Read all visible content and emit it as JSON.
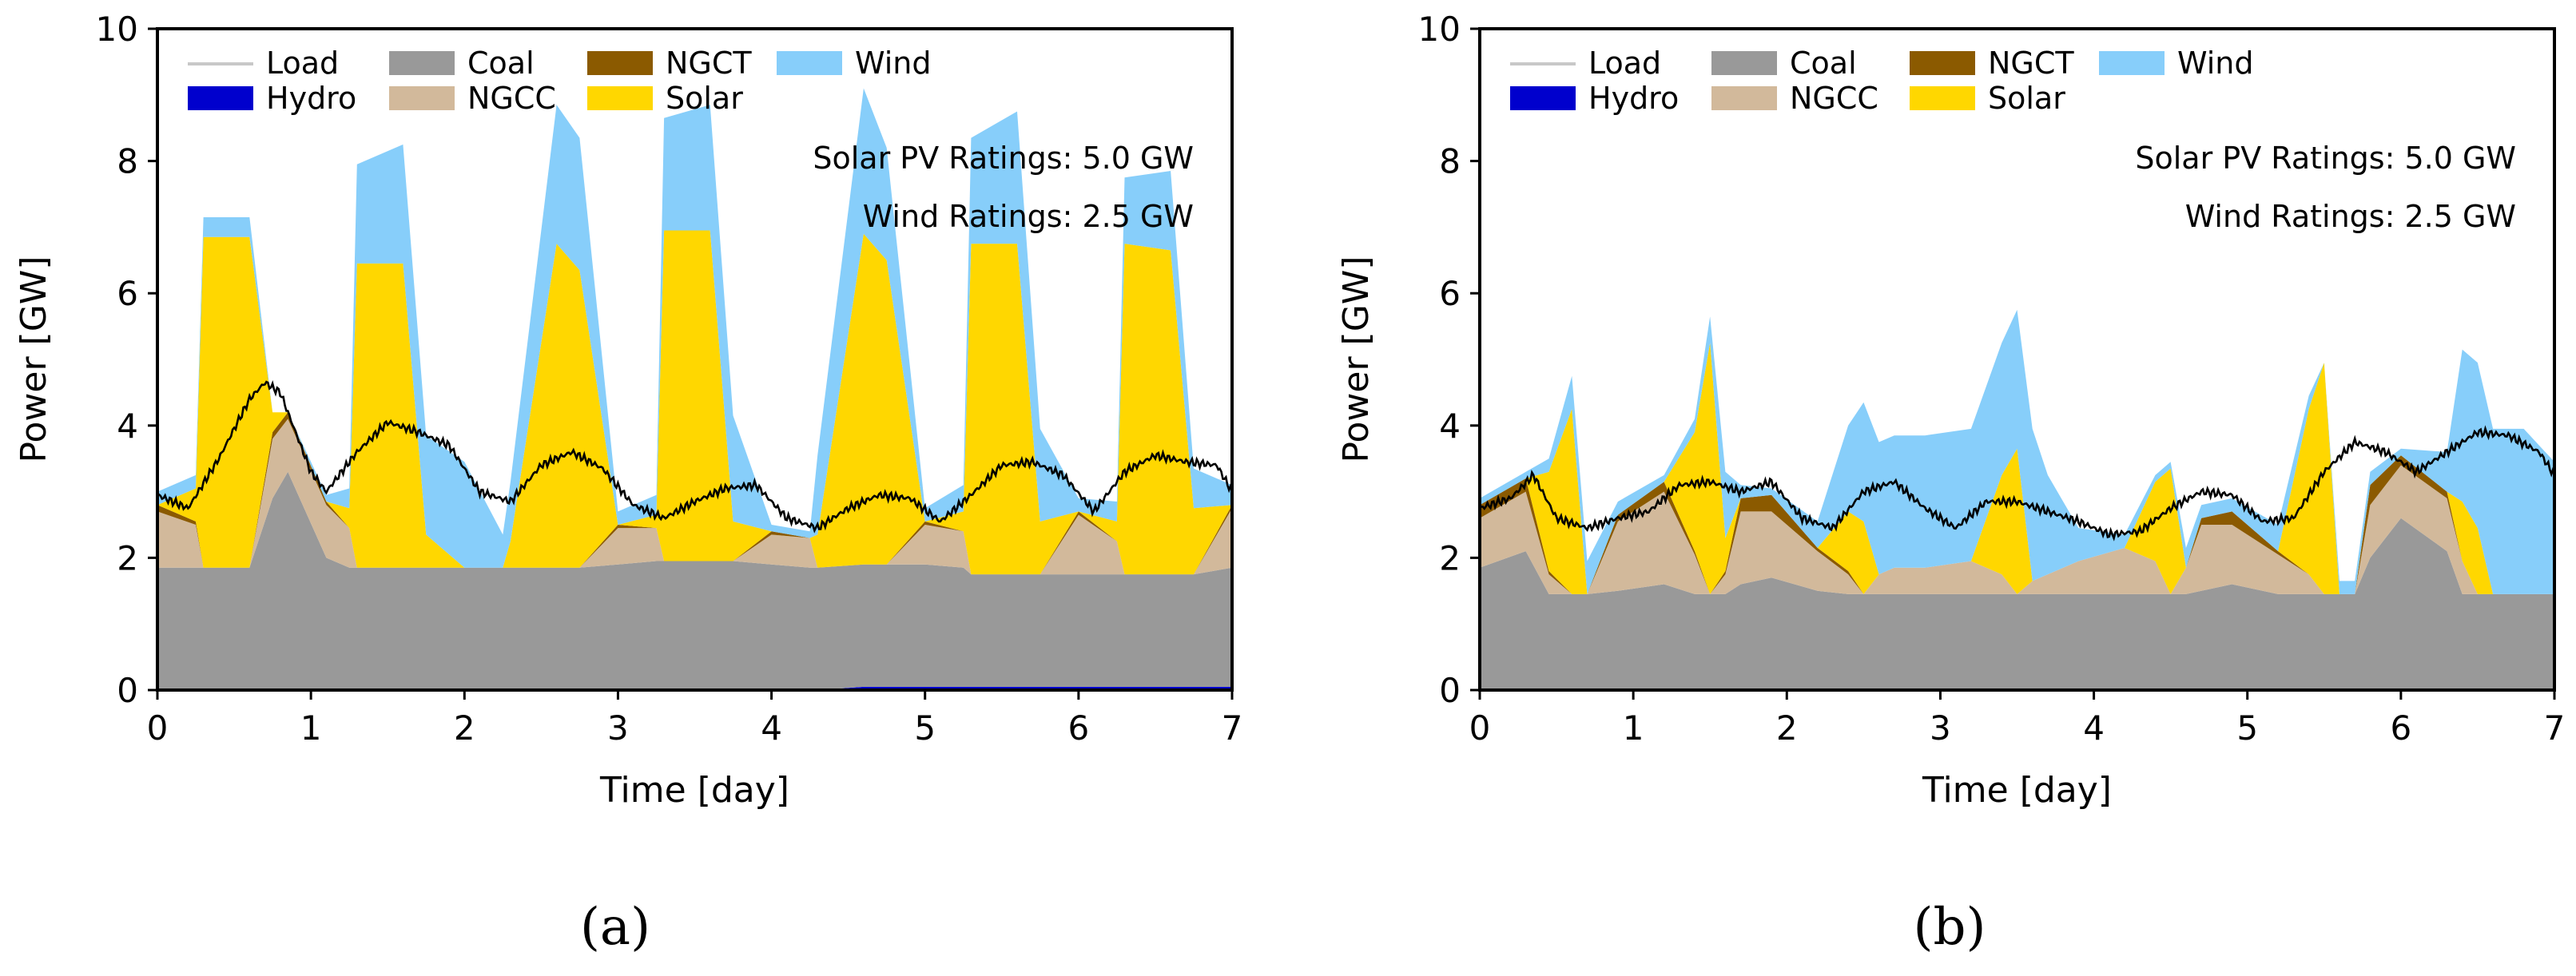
{
  "figure": {
    "captions": [
      "(a)",
      "(b)"
    ]
  },
  "colors": {
    "Load": "#c8c8c8",
    "Coal": "#999999",
    "NGCC": "#d2b99b",
    "NGCT": "#8b5a00",
    "Solar": "#ffd700",
    "Wind": "#87cefa",
    "Hydro": "#0000cd",
    "LoadLine": "#000000"
  },
  "chart_data": [
    {
      "type": "area",
      "stacked": true,
      "caption": "(a)",
      "xlabel": "Time [day]",
      "ylabel": "Power [GW]",
      "xlim": [
        0,
        7
      ],
      "ylim": [
        0,
        10
      ],
      "xticks": [
        0,
        1,
        2,
        3,
        4,
        5,
        6,
        7
      ],
      "yticks": [
        0,
        2,
        4,
        6,
        8,
        10
      ],
      "legend": {
        "placement": "top-left",
        "entries": [
          "Load",
          "Coal",
          "NGCT",
          "Wind",
          "Hydro",
          "NGCC",
          "Solar"
        ]
      },
      "annotations": [
        "Solar PV Ratings: 5.0 GW",
        "Wind Ratings: 2.5 GW"
      ],
      "x": [
        0,
        0.25,
        0.3,
        0.6,
        0.75,
        0.85,
        1.1,
        1.25,
        1.3,
        1.6,
        1.75,
        2.0,
        2.25,
        2.3,
        2.6,
        2.75,
        3.0,
        3.25,
        3.3,
        3.6,
        3.75,
        4.0,
        4.25,
        4.3,
        4.6,
        4.75,
        5.0,
        5.25,
        5.3,
        5.6,
        5.75,
        6.0,
        6.25,
        6.3,
        6.6,
        6.75,
        7.0
      ],
      "series": [
        {
          "name": "Hydro",
          "values": [
            0,
            0,
            0,
            0,
            0,
            0,
            0,
            0,
            0,
            0,
            0,
            0,
            0,
            0,
            0,
            0,
            0,
            0,
            0,
            0,
            0,
            0,
            0,
            0,
            0.05,
            0.05,
            0.05,
            0.05,
            0.05,
            0.05,
            0.05,
            0.05,
            0.05,
            0.05,
            0.05,
            0.05,
            0.05
          ]
        },
        {
          "name": "Coal",
          "values": [
            1.85,
            1.85,
            1.85,
            1.85,
            2.9,
            3.3,
            2.0,
            1.85,
            1.85,
            1.85,
            1.85,
            1.85,
            1.85,
            1.85,
            1.85,
            1.85,
            1.9,
            1.95,
            1.95,
            1.95,
            1.95,
            1.9,
            1.85,
            1.85,
            1.85,
            1.85,
            1.85,
            1.8,
            1.7,
            1.7,
            1.7,
            1.7,
            1.7,
            1.7,
            1.7,
            1.7,
            1.8
          ]
        },
        {
          "name": "NGCC",
          "values": [
            0.85,
            0.65,
            0,
            0,
            0.9,
            0.8,
            0.8,
            0.6,
            0,
            0,
            0,
            0,
            0,
            0,
            0,
            0,
            0.55,
            0.5,
            0,
            0,
            0,
            0.45,
            0.45,
            0,
            0,
            0,
            0.6,
            0.55,
            0,
            0,
            0,
            0.9,
            0.5,
            0,
            0,
            0,
            0.9
          ]
        },
        {
          "name": "NGCT",
          "values": [
            0.1,
            0.05,
            0,
            0,
            0.1,
            0.1,
            0.05,
            0,
            0,
            0,
            0,
            0,
            0,
            0,
            0,
            0,
            0.05,
            0,
            0,
            0,
            0,
            0.05,
            0,
            0,
            0,
            0,
            0.05,
            0,
            0,
            0,
            0,
            0.05,
            0,
            0,
            0,
            0,
            0.05
          ]
        },
        {
          "name": "Solar",
          "values": [
            0,
            0.5,
            5.0,
            5.0,
            0.3,
            0,
            0,
            0.3,
            4.6,
            4.6,
            0.5,
            0,
            0,
            0.4,
            4.9,
            4.5,
            0,
            0.2,
            5.0,
            5.0,
            0.6,
            0,
            0,
            0.5,
            5.0,
            4.6,
            0,
            0.3,
            5.0,
            5.0,
            0.8,
            0,
            0.3,
            5.0,
            4.9,
            1.0,
            0
          ]
        },
        {
          "name": "Wind",
          "values": [
            0.2,
            0.2,
            0.3,
            0.3,
            0,
            0,
            0.1,
            0.3,
            1.5,
            1.8,
            1.5,
            1.6,
            0.5,
            0.9,
            2.1,
            2.0,
            0.2,
            0.3,
            1.7,
            1.9,
            1.6,
            0.1,
            0.1,
            1.2,
            2.2,
            1.7,
            0.2,
            0.4,
            1.6,
            2.0,
            1.4,
            0.2,
            0.3,
            1.0,
            1.2,
            0.6,
            0.3
          ]
        }
      ],
      "load": {
        "x": [
          0,
          0.2,
          0.4,
          0.6,
          0.7,
          0.8,
          1.0,
          1.1,
          1.3,
          1.5,
          1.7,
          1.9,
          2.1,
          2.3,
          2.5,
          2.7,
          2.9,
          3.1,
          3.3,
          3.5,
          3.7,
          3.9,
          4.1,
          4.3,
          4.5,
          4.7,
          4.9,
          5.1,
          5.3,
          5.5,
          5.7,
          5.9,
          6.1,
          6.3,
          6.5,
          6.7,
          6.9,
          7.0
        ],
        "values": [
          2.95,
          2.75,
          3.5,
          4.4,
          4.65,
          4.5,
          3.3,
          3.0,
          3.6,
          4.05,
          3.9,
          3.7,
          3.0,
          2.85,
          3.4,
          3.6,
          3.35,
          2.8,
          2.6,
          2.85,
          3.05,
          3.1,
          2.6,
          2.45,
          2.75,
          2.95,
          2.9,
          2.55,
          2.95,
          3.4,
          3.45,
          3.25,
          2.7,
          3.3,
          3.55,
          3.45,
          3.4,
          3.0
        ]
      }
    },
    {
      "type": "area",
      "stacked": true,
      "caption": "(b)",
      "xlabel": "Time [day]",
      "ylabel": "Power [GW]",
      "xlim": [
        0,
        7
      ],
      "ylim": [
        0,
        10
      ],
      "xticks": [
        0,
        1,
        2,
        3,
        4,
        5,
        6,
        7
      ],
      "yticks": [
        0,
        2,
        4,
        6,
        8,
        10
      ],
      "legend": {
        "placement": "top-left",
        "entries": [
          "Load",
          "Coal",
          "NGCT",
          "Wind",
          "Hydro",
          "NGCC",
          "Solar"
        ]
      },
      "annotations": [
        "Solar PV Ratings: 5.0 GW",
        "Wind Ratings: 2.5 GW"
      ],
      "x": [
        0,
        0.3,
        0.45,
        0.6,
        0.7,
        0.9,
        1.2,
        1.4,
        1.5,
        1.6,
        1.7,
        1.9,
        2.2,
        2.4,
        2.5,
        2.6,
        2.7,
        2.9,
        3.2,
        3.4,
        3.5,
        3.6,
        3.7,
        3.9,
        4.2,
        4.4,
        4.5,
        4.6,
        4.7,
        4.9,
        5.2,
        5.4,
        5.5,
        5.6,
        5.7,
        5.8,
        6.0,
        6.3,
        6.4,
        6.5,
        6.6,
        6.8,
        7.0
      ],
      "series": [
        {
          "name": "Hydro",
          "values": [
            0,
            0,
            0,
            0,
            0,
            0,
            0,
            0,
            0,
            0,
            0,
            0,
            0,
            0,
            0,
            0,
            0,
            0,
            0,
            0,
            0,
            0,
            0,
            0,
            0,
            0,
            0,
            0,
            0,
            0,
            0,
            0,
            0,
            0,
            0,
            0,
            0,
            0,
            0,
            0,
            0,
            0,
            0
          ]
        },
        {
          "name": "Coal",
          "values": [
            1.85,
            2.1,
            1.45,
            1.45,
            1.45,
            1.5,
            1.6,
            1.45,
            1.45,
            1.45,
            1.6,
            1.7,
            1.5,
            1.45,
            1.45,
            1.45,
            1.45,
            1.45,
            1.45,
            1.45,
            1.45,
            1.45,
            1.45,
            1.45,
            1.45,
            1.45,
            1.45,
            1.45,
            1.5,
            1.6,
            1.45,
            1.45,
            1.45,
            1.45,
            1.45,
            2.0,
            2.6,
            2.1,
            1.45,
            1.45,
            1.45,
            1.45,
            1.45
          ]
        },
        {
          "name": "NGCC",
          "values": [
            0.75,
            0.9,
            0.3,
            0,
            0,
            1.05,
            1.4,
            0.6,
            0,
            0.3,
            1.1,
            1.0,
            0.6,
            0.3,
            0,
            0.3,
            0.4,
            0.4,
            0.5,
            0.3,
            0,
            0.2,
            0.3,
            0.5,
            0.7,
            0.5,
            0,
            0.4,
            1.0,
            0.9,
            0.6,
            0.3,
            0,
            0,
            0,
            0.8,
            0.8,
            0.8,
            0.5,
            0,
            0,
            0,
            0
          ]
        },
        {
          "name": "NGCT",
          "values": [
            0.2,
            0.2,
            0.05,
            0,
            0,
            0.1,
            0.15,
            0.05,
            0,
            0.05,
            0.2,
            0.25,
            0.05,
            0.05,
            0,
            0,
            0,
            0,
            0,
            0,
            0,
            0,
            0,
            0,
            0,
            0,
            0,
            0,
            0.1,
            0.2,
            0.05,
            0,
            0,
            0,
            0,
            0.3,
            0.15,
            0.1,
            0,
            0,
            0,
            0,
            0
          ]
        },
        {
          "name": "Solar",
          "values": [
            0,
            0,
            1.5,
            2.8,
            0,
            0,
            0,
            1.8,
            3.8,
            0.5,
            0,
            0,
            0,
            0.9,
            1.1,
            0,
            0,
            0,
            0,
            1.5,
            2.2,
            0,
            0,
            0,
            0,
            1.2,
            1.9,
            0,
            0,
            0,
            0,
            2.5,
            3.5,
            0,
            0,
            0,
            0,
            0,
            0.9,
            1.0,
            0,
            0,
            0
          ]
        },
        {
          "name": "Wind",
          "values": [
            0.1,
            0.1,
            0.2,
            0.5,
            0.5,
            0.2,
            0.1,
            0.2,
            0.4,
            1.0,
            0.2,
            0.1,
            0.4,
            1.3,
            1.8,
            2.0,
            2.0,
            2.0,
            2.0,
            2.0,
            2.1,
            2.3,
            1.5,
            0.5,
            0.2,
            0.1,
            0.1,
            0.3,
            0.2,
            0.2,
            0.4,
            0.2,
            0,
            0.2,
            0.2,
            0.2,
            0.1,
            0.6,
            2.3,
            2.5,
            2.5,
            2.5,
            2.0
          ]
        }
      ],
      "load": {
        "x": [
          0,
          0.2,
          0.35,
          0.5,
          0.7,
          0.9,
          1.1,
          1.3,
          1.5,
          1.7,
          1.9,
          2.1,
          2.3,
          2.5,
          2.7,
          2.9,
          3.1,
          3.3,
          3.5,
          3.7,
          3.9,
          4.1,
          4.3,
          4.5,
          4.7,
          4.9,
          5.1,
          5.3,
          5.5,
          5.7,
          5.9,
          6.1,
          6.3,
          6.5,
          6.7,
          6.9,
          7.0
        ],
        "values": [
          2.75,
          2.9,
          3.25,
          2.6,
          2.45,
          2.6,
          2.7,
          3.1,
          3.15,
          3.0,
          3.15,
          2.6,
          2.45,
          3.0,
          3.15,
          2.75,
          2.45,
          2.85,
          2.85,
          2.7,
          2.55,
          2.35,
          2.4,
          2.75,
          3.0,
          2.95,
          2.55,
          2.6,
          3.3,
          3.75,
          3.6,
          3.3,
          3.6,
          3.9,
          3.85,
          3.6,
          3.25
        ]
      }
    }
  ]
}
